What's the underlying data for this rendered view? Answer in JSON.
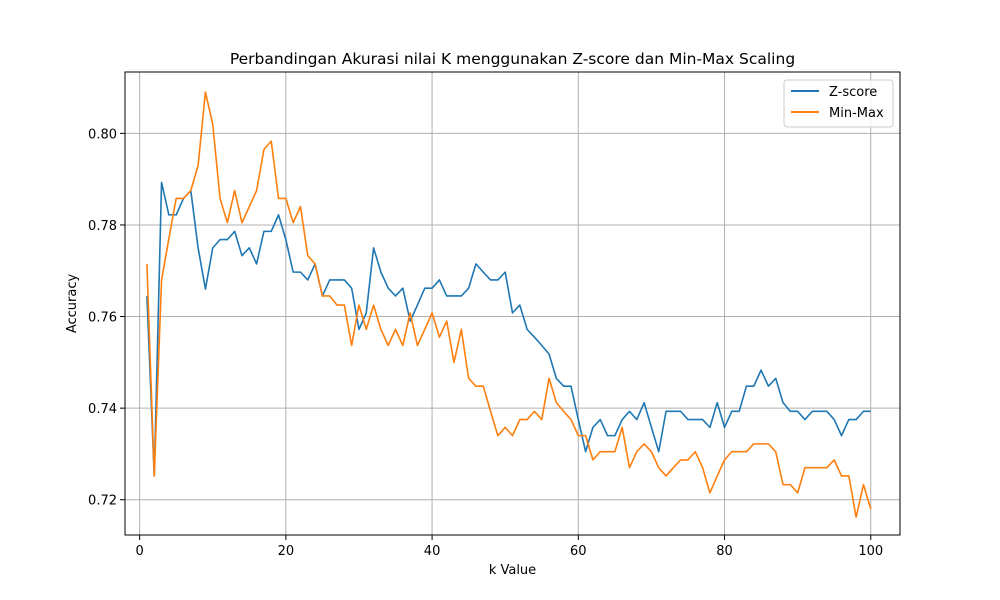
{
  "chart_data": {
    "type": "line",
    "title": "Perbandingan Akurasi nilai K menggunakan Z-score dan Min-Max Scaling",
    "xlabel": "k Value",
    "ylabel": "Accuracy",
    "xlim": [
      -2,
      104
    ],
    "ylim": [
      0.7123,
      0.8134
    ],
    "x_ticks": [
      0,
      20,
      40,
      60,
      80,
      100
    ],
    "y_ticks": [
      0.72,
      0.74,
      0.76,
      0.78,
      0.8
    ],
    "x_tick_labels": [
      "0",
      "20",
      "40",
      "60",
      "80",
      "100"
    ],
    "y_tick_labels": [
      "0.72",
      "0.74",
      "0.76",
      "0.78",
      "0.80"
    ],
    "grid": true,
    "legend_position": "top-right",
    "x": [
      1,
      2,
      3,
      4,
      5,
      6,
      7,
      8,
      9,
      10,
      11,
      12,
      13,
      14,
      15,
      16,
      17,
      18,
      19,
      20,
      21,
      22,
      23,
      24,
      25,
      26,
      27,
      28,
      29,
      30,
      31,
      32,
      33,
      34,
      35,
      36,
      37,
      38,
      39,
      40,
      41,
      42,
      43,
      44,
      45,
      46,
      47,
      48,
      49,
      50,
      51,
      52,
      53,
      54,
      55,
      56,
      57,
      58,
      59,
      60,
      61,
      62,
      63,
      64,
      65,
      66,
      67,
      68,
      69,
      70,
      71,
      72,
      73,
      74,
      75,
      76,
      77,
      78,
      79,
      80,
      81,
      82,
      83,
      84,
      85,
      86,
      87,
      88,
      89,
      90,
      91,
      92,
      93,
      94,
      95,
      96,
      97,
      98,
      99,
      100
    ],
    "series": [
      {
        "name": "Z-score",
        "color": "#1f77b4",
        "values": [
          0.7645,
          0.7252,
          0.7893,
          0.7822,
          0.7822,
          0.7858,
          0.7875,
          0.775,
          0.766,
          0.775,
          0.7768,
          0.7768,
          0.7786,
          0.7733,
          0.775,
          0.7715,
          0.7786,
          0.7786,
          0.7822,
          0.7768,
          0.7697,
          0.7697,
          0.768,
          0.7715,
          0.7645,
          0.768,
          0.768,
          0.768,
          0.7662,
          0.7572,
          0.7608,
          0.775,
          0.7697,
          0.7662,
          0.7645,
          0.7662,
          0.759,
          0.7625,
          0.7662,
          0.7662,
          0.768,
          0.7645,
          0.7645,
          0.7645,
          0.7662,
          0.7715,
          0.7697,
          0.768,
          0.768,
          0.7697,
          0.7608,
          0.7625,
          0.7572,
          0.7555,
          0.7537,
          0.7518,
          0.7465,
          0.7448,
          0.7448,
          0.7375,
          0.7305,
          0.7358,
          0.7375,
          0.734,
          0.734,
          0.7375,
          0.7393,
          0.7375,
          0.7412,
          0.7358,
          0.7305,
          0.7393,
          0.7393,
          0.7393,
          0.7375,
          0.7375,
          0.7375,
          0.7358,
          0.7412,
          0.7358,
          0.7393,
          0.7393,
          0.7448,
          0.7448,
          0.7483,
          0.7448,
          0.7465,
          0.7412,
          0.7393,
          0.7393,
          0.7375,
          0.7393,
          0.7393,
          0.7393,
          0.7375,
          0.734,
          0.7375,
          0.7375,
          0.7393,
          0.7393
        ]
      },
      {
        "name": "Min-Max",
        "color": "#ff7f0e",
        "values": [
          0.7715,
          0.7252,
          0.768,
          0.777,
          0.7858,
          0.7858,
          0.7875,
          0.793,
          0.809,
          0.802,
          0.7858,
          0.7805,
          0.7875,
          0.7805,
          0.784,
          0.7875,
          0.7965,
          0.7983,
          0.7858,
          0.7858,
          0.7805,
          0.784,
          0.7733,
          0.7715,
          0.7645,
          0.7645,
          0.7625,
          0.7625,
          0.7537,
          0.7625,
          0.7572,
          0.7625,
          0.7572,
          0.7537,
          0.7572,
          0.7537,
          0.7608,
          0.7537,
          0.7572,
          0.7608,
          0.7555,
          0.759,
          0.75,
          0.7572,
          0.7465,
          0.7448,
          0.7448,
          0.7393,
          0.734,
          0.7358,
          0.734,
          0.7375,
          0.7375,
          0.7393,
          0.7375,
          0.7465,
          0.7412,
          0.7393,
          0.7375,
          0.734,
          0.734,
          0.7287,
          0.7305,
          0.7305,
          0.7305,
          0.7358,
          0.727,
          0.7305,
          0.7322,
          0.7305,
          0.727,
          0.7252,
          0.727,
          0.7287,
          0.7287,
          0.7305,
          0.727,
          0.7215,
          0.7252,
          0.7287,
          0.7305,
          0.7305,
          0.7305,
          0.7322,
          0.7322,
          0.7322,
          0.7305,
          0.7233,
          0.7233,
          0.7215,
          0.727,
          0.727,
          0.727,
          0.727,
          0.7287,
          0.7252,
          0.7252,
          0.7162,
          0.7233,
          0.718
        ]
      }
    ]
  }
}
